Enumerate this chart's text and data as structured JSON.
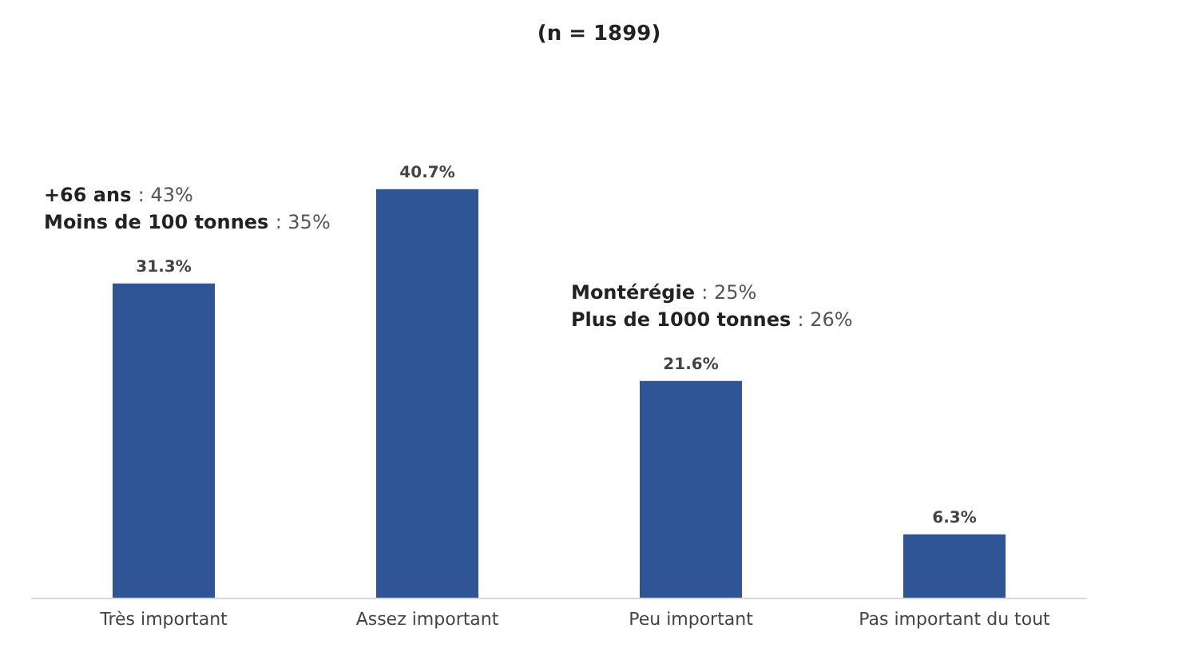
{
  "chart_data": {
    "type": "bar",
    "title": "(n = 1899)",
    "categories": [
      "Très important",
      "Assez important",
      "Peu important",
      "Pas important du tout"
    ],
    "values": [
      31.3,
      40.7,
      21.6,
      6.3
    ],
    "value_labels": [
      "31.3%",
      "40.7%",
      "21.6%",
      "6.3%"
    ],
    "color": "#2f5597",
    "annotations": [
      {
        "text": "+66 ans : 43%\nMoins de 100 tonnes : 35%",
        "x": "Très important",
        "y": 31.3
      },
      {
        "text": "Montérégie : 25%\nPlus de 1000 tonnes : 26%",
        "x": "Peu important",
        "y": 21.6
      }
    ],
    "data_labels": false
  }
}
